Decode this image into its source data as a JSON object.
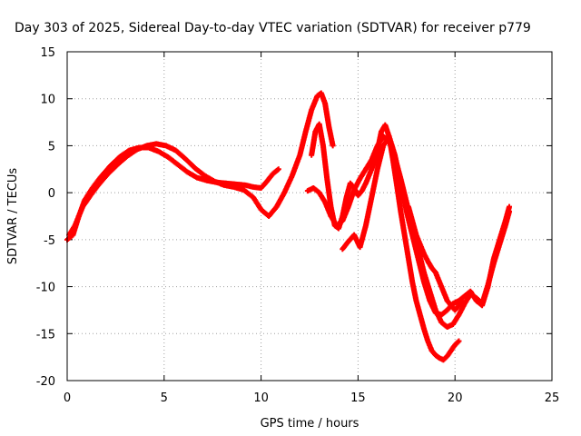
{
  "chart_data": {
    "type": "scatter",
    "title": "Day 303 of 2025, Sidereal Day-to-day VTEC variation (SDTVAR) for receiver p779",
    "xlabel": "GPS time / hours",
    "ylabel": "SDTVAR / TECUs",
    "xlim": [
      0,
      25
    ],
    "ylim": [
      -20,
      15
    ],
    "xticks": [
      0,
      5,
      10,
      15,
      20,
      25
    ],
    "yticks": [
      -20,
      -15,
      -10,
      -5,
      0,
      5,
      10,
      15
    ],
    "xtick_labels": [
      "0",
      "5",
      "10",
      "15",
      "20",
      "25"
    ],
    "ytick_labels": [
      "-20",
      "-15",
      "-10",
      "-5",
      "0",
      "5",
      "10",
      "15"
    ],
    "grid": true,
    "marker": "plus",
    "color": "#ff0000",
    "series": [
      {
        "x": [
          0.0,
          0.3,
          0.6,
          0.9,
          1.3,
          1.7,
          2.2,
          2.7,
          3.2,
          3.7,
          4.2,
          4.7,
          5.2,
          5.7,
          6.2,
          6.7,
          7.2,
          7.7,
          8.2,
          8.7,
          9.2,
          9.6,
          10.0,
          10.3,
          10.6,
          10.9
        ],
        "y": [
          -5.0,
          -4.5,
          -2.5,
          -0.8,
          0.5,
          1.6,
          2.8,
          3.8,
          4.5,
          4.8,
          4.8,
          4.4,
          3.8,
          3.0,
          2.2,
          1.6,
          1.3,
          1.1,
          1.0,
          0.9,
          0.8,
          0.6,
          0.5,
          1.2,
          2.0,
          2.5
        ]
      },
      {
        "x": [
          0.1,
          0.4,
          0.8,
          1.2,
          1.6,
          2.1,
          2.6,
          3.1,
          3.6,
          4.1,
          4.6,
          5.1,
          5.6,
          6.1,
          6.6,
          7.1,
          7.6,
          8.1,
          8.6,
          9.1,
          9.6,
          10.0,
          10.4,
          10.8,
          11.2,
          11.6,
          12.0,
          12.3,
          12.6,
          12.9,
          13.1,
          13.3,
          13.5,
          13.7
        ],
        "y": [
          -4.5,
          -3.5,
          -1.5,
          -0.3,
          0.8,
          2.0,
          3.0,
          3.9,
          4.6,
          5.0,
          5.2,
          5.0,
          4.5,
          3.6,
          2.6,
          1.8,
          1.2,
          0.8,
          0.6,
          0.3,
          -0.5,
          -1.8,
          -2.5,
          -1.5,
          0.0,
          1.8,
          4.0,
          6.5,
          8.8,
          10.3,
          10.6,
          9.5,
          7.0,
          5.0
        ]
      },
      {
        "x": [
          12.6,
          12.8,
          13.0,
          13.2,
          13.4,
          13.6,
          13.8,
          14.0,
          14.2,
          14.4,
          14.6,
          14.8,
          15.0,
          15.2,
          15.4,
          15.6,
          15.8,
          16.0,
          16.2,
          16.4,
          16.6,
          16.8,
          17.0,
          17.2,
          17.4,
          17.6,
          17.8,
          18.0,
          18.2,
          18.4,
          18.6,
          18.8,
          19.0,
          19.2,
          19.4,
          19.6,
          19.8,
          20.0,
          20.2
        ],
        "y": [
          4.0,
          6.5,
          7.3,
          5.0,
          1.5,
          -1.5,
          -3.5,
          -3.8,
          -2.5,
          -0.5,
          1.0,
          0.5,
          -0.3,
          0.2,
          1.0,
          2.0,
          3.0,
          4.5,
          6.5,
          7.2,
          6.0,
          3.5,
          0.8,
          -2.0,
          -4.5,
          -7.0,
          -9.5,
          -11.5,
          -13.0,
          -14.5,
          -15.8,
          -16.8,
          -17.3,
          -17.6,
          -17.8,
          -17.4,
          -16.8,
          -16.2,
          -15.8
        ]
      },
      {
        "x": [
          12.4,
          12.7,
          13.0,
          13.3,
          13.6,
          13.9,
          14.2,
          14.5,
          14.8,
          15.1,
          15.4,
          15.7,
          16.0,
          16.3,
          16.6,
          16.9,
          17.2,
          17.5,
          17.8,
          18.1,
          18.4,
          18.7,
          19.0,
          19.3,
          19.6,
          19.9,
          20.2,
          20.5,
          20.8,
          21.1,
          21.4,
          21.7,
          22.0,
          22.3,
          22.6,
          22.8
        ],
        "y": [
          0.2,
          0.5,
          0.0,
          -1.0,
          -2.5,
          -3.5,
          -3.0,
          -1.5,
          0.3,
          1.5,
          2.5,
          3.5,
          5.0,
          6.0,
          5.5,
          3.8,
          1.5,
          -1.0,
          -3.5,
          -6.0,
          -8.5,
          -10.5,
          -12.5,
          -13.8,
          -14.3,
          -14.0,
          -13.0,
          -11.8,
          -10.8,
          -11.2,
          -11.8,
          -9.8,
          -7.5,
          -5.5,
          -3.5,
          -2.0
        ]
      },
      {
        "x": [
          14.2,
          14.5,
          14.8,
          15.1,
          15.4,
          15.7,
          16.0,
          16.3,
          16.6,
          16.9,
          17.2,
          17.5,
          17.8,
          18.1,
          18.4,
          18.7,
          19.0,
          19.3,
          19.6,
          19.9,
          20.2,
          20.5,
          20.8,
          21.1,
          21.4,
          21.7,
          22.0,
          22.3,
          22.6,
          22.8
        ],
        "y": [
          -6.0,
          -5.2,
          -4.5,
          -5.8,
          -3.5,
          -0.5,
          2.5,
          5.0,
          6.0,
          4.0,
          1.0,
          -2.0,
          -4.5,
          -7.0,
          -9.5,
          -11.5,
          -12.8,
          -13.0,
          -12.5,
          -11.8,
          -11.5,
          -11.0,
          -10.5,
          -11.5,
          -12.0,
          -10.0,
          -7.0,
          -5.0,
          -3.0,
          -1.5
        ]
      },
      {
        "x": [
          17.6,
          17.8,
          18.0,
          18.2,
          18.4,
          18.6,
          18.8,
          19.0,
          19.2,
          19.4,
          19.6,
          19.8,
          20.0,
          20.2,
          20.4
        ],
        "y": [
          -1.5,
          -3.0,
          -4.5,
          -5.5,
          -6.5,
          -7.3,
          -8.0,
          -8.5,
          -9.5,
          -10.5,
          -11.5,
          -12.0,
          -12.5,
          -12.0,
          -11.5
        ]
      }
    ]
  }
}
